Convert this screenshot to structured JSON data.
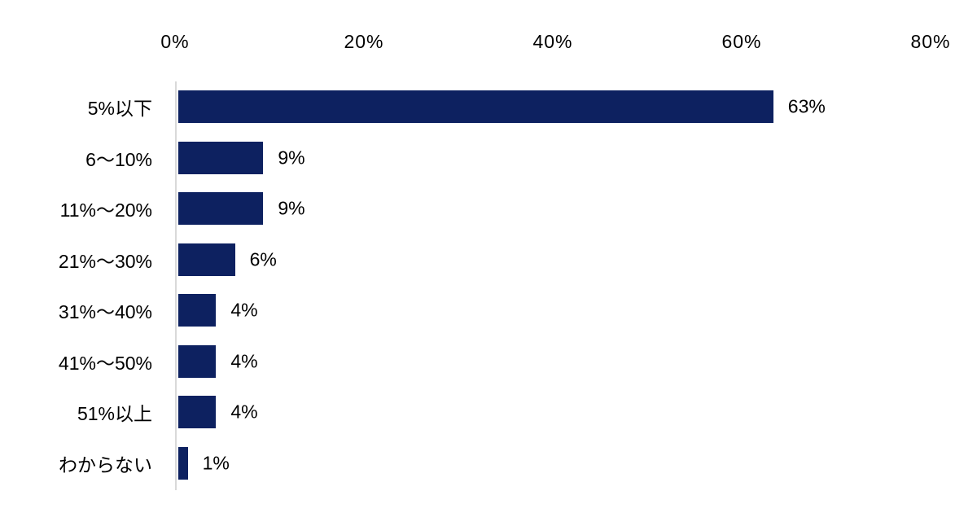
{
  "chart_data": {
    "type": "bar",
    "orientation": "horizontal",
    "title": "",
    "xlabel": "",
    "ylabel": "",
    "xlim": [
      0,
      80
    ],
    "grid": false,
    "legend": false,
    "axis_position": "top",
    "categories": [
      "5%以下",
      "6〜10%",
      "11%〜20%",
      "21%〜30%",
      "31%〜40%",
      "41%〜50%",
      "51%以上",
      "わからない"
    ],
    "values": [
      63,
      9,
      9,
      6,
      4,
      4,
      4,
      1
    ],
    "value_labels": [
      "63%",
      "9%",
      "9%",
      "6%",
      "4%",
      "4%",
      "4%",
      "1%"
    ],
    "x_ticks": [
      {
        "label": "0%",
        "value": 0
      },
      {
        "label": "20%",
        "value": 20
      },
      {
        "label": "40%",
        "value": 40
      },
      {
        "label": "60%",
        "value": 60
      },
      {
        "label": "80%",
        "value": 80
      }
    ],
    "colors": {
      "bar": "#0d2160",
      "axis_line": "#d9d9d9",
      "text": "#000000",
      "background": "#ffffff"
    }
  }
}
